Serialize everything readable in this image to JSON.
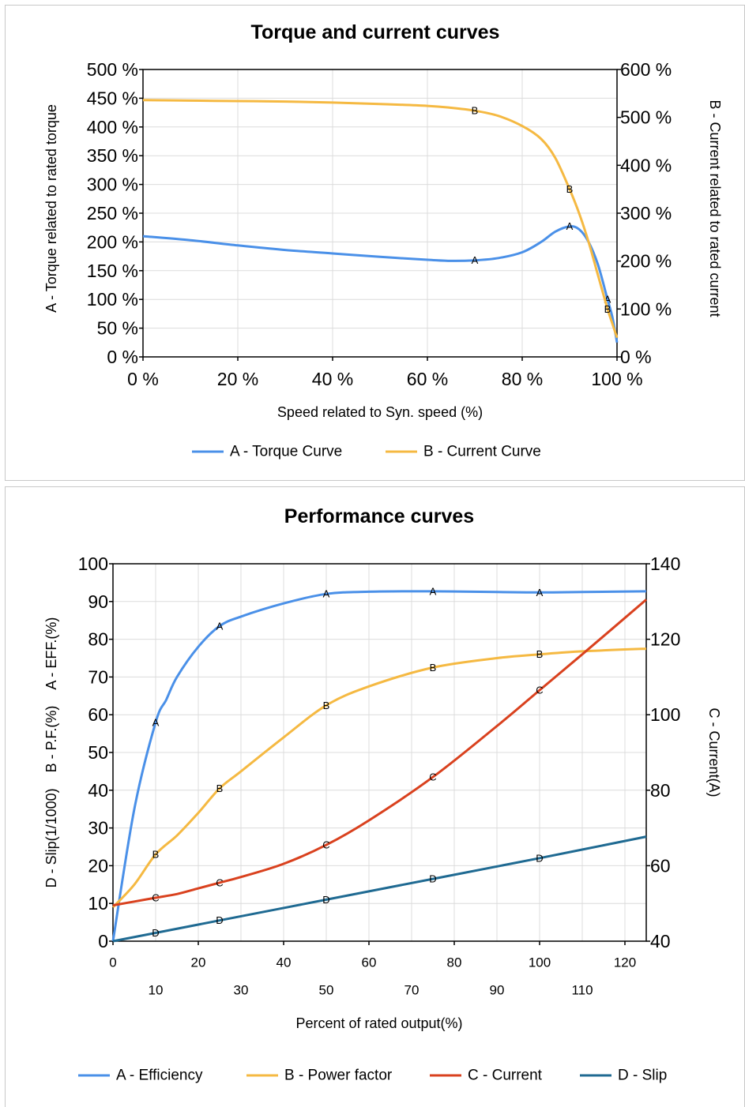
{
  "chart_data": [
    {
      "type": "line",
      "title": "Torque and current curves",
      "xlabel": "Speed related to Syn. speed (%)",
      "ylabel_left": "A - Torque related to rated torque",
      "ylabel_right": "B - Current related to rated current",
      "xlim": [
        0,
        100
      ],
      "ylim_left": [
        0,
        500
      ],
      "ylim_right": [
        0,
        600
      ],
      "x_ticks": [
        "0 %",
        "20 %",
        "40 %",
        "60 %",
        "80 %",
        "100 %"
      ],
      "y_left_ticks": [
        "500 %",
        "450 %",
        "400 %",
        "350 %",
        "300 %",
        "250 %",
        "200 %",
        "150 %",
        "100 %",
        "50 %",
        "0 %"
      ],
      "y_right_ticks": [
        "600 %",
        "500 %",
        "400 %",
        "300 %",
        "200 %",
        "100 %",
        "0 %"
      ],
      "grid": true,
      "legend": "bottom",
      "series": [
        {
          "name": "A - Torque Curve",
          "marker": "A",
          "axis": "left",
          "color": "#4a90e8",
          "x": [
            0,
            10,
            20,
            30,
            40,
            50,
            60,
            65,
            70,
            75,
            80,
            84,
            87,
            90,
            92,
            94,
            96,
            98,
            99,
            100
          ],
          "y": [
            210,
            203,
            194,
            186,
            180,
            174,
            169,
            167,
            168,
            172,
            182,
            200,
            218,
            227,
            222,
            200,
            160,
            100,
            70,
            25
          ],
          "marker_x": [
            70,
            90,
            98
          ]
        },
        {
          "name": "B - Current Curve",
          "marker": "B",
          "axis": "right",
          "color": "#f5b942",
          "x": [
            0,
            10,
            20,
            30,
            40,
            50,
            60,
            65,
            70,
            75,
            80,
            84,
            87,
            90,
            92,
            94,
            96,
            98,
            99,
            100
          ],
          "y": [
            536,
            535,
            534,
            533,
            531,
            528,
            524,
            520,
            514,
            503,
            482,
            455,
            415,
            350,
            300,
            240,
            170,
            100,
            70,
            40
          ],
          "marker_x": [
            70,
            90,
            98
          ]
        }
      ]
    },
    {
      "type": "line",
      "title": "Performance curves",
      "xlabel": "Percent of rated output(%)",
      "ylabel_left_parts": [
        "D - Slip(1/1000)",
        "B - P.F.(%)",
        "A - EFF.(%)"
      ],
      "ylabel_right": "C - Current(A)",
      "xlim": [
        0,
        125
      ],
      "ylim_left": [
        0,
        100
      ],
      "ylim_right": [
        40,
        140
      ],
      "x_ticks_top": [
        "0",
        "20",
        "40",
        "60",
        "80",
        "100",
        "120"
      ],
      "x_ticks_bottom": [
        "10",
        "30",
        "50",
        "70",
        "90",
        "110"
      ],
      "y_left_ticks": [
        "100",
        "90",
        "80",
        "70",
        "60",
        "50",
        "40",
        "30",
        "20",
        "10",
        "0"
      ],
      "y_right_ticks": [
        "140",
        "120",
        "100",
        "80",
        "60",
        "40"
      ],
      "grid": true,
      "legend": "bottom",
      "series": [
        {
          "name": "A -  Efficiency",
          "marker": "A",
          "axis": "left",
          "color": "#4a90e8",
          "x": [
            0,
            5,
            10,
            12.5,
            15,
            20,
            25,
            30,
            40,
            50,
            60,
            75,
            90,
            100,
            110,
            125
          ],
          "y": [
            0,
            35,
            58,
            64,
            70,
            78,
            83.5,
            86,
            89.5,
            92,
            92.6,
            92.7,
            92.5,
            92.4,
            92.5,
            92.7
          ],
          "marker_x": [
            10,
            25,
            50,
            75,
            100
          ]
        },
        {
          "name": "B - Power factor",
          "marker": "B",
          "axis": "left",
          "color": "#f5b942",
          "x": [
            0,
            5,
            10,
            15,
            20,
            25,
            30,
            40,
            50,
            60,
            75,
            90,
            100,
            110,
            125
          ],
          "y": [
            9,
            15,
            23,
            28,
            34,
            40.5,
            45,
            54,
            62.5,
            67.5,
            72.5,
            75,
            76,
            76.8,
            77.5
          ],
          "marker_x": [
            10,
            25,
            50,
            75,
            100
          ]
        },
        {
          "name": "C - Current",
          "marker": "C",
          "axis": "right",
          "color": "#d9411e",
          "x": [
            0,
            5,
            10,
            15,
            20,
            25,
            30,
            40,
            50,
            60,
            75,
            90,
            100,
            110,
            125
          ],
          "y": [
            49.5,
            50.5,
            51.5,
            52.5,
            54,
            55.5,
            57,
            60.5,
            65.5,
            72,
            83.5,
            97,
            106.5,
            116,
            130.5
          ],
          "marker_x": [
            10,
            25,
            50,
            75,
            100
          ]
        },
        {
          "name": "D - Slip",
          "marker": "D",
          "axis": "left",
          "color": "#1f6a92",
          "x": [
            0,
            10,
            25,
            50,
            75,
            100,
            125
          ],
          "y": [
            0,
            2.2,
            5.5,
            11,
            16.5,
            22,
            27.7
          ],
          "marker_x": [
            10,
            25,
            50,
            75,
            100
          ]
        }
      ]
    }
  ]
}
